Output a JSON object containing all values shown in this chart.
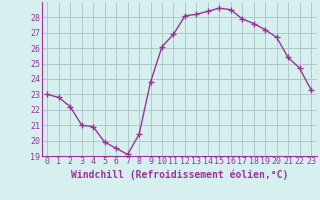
{
  "x": [
    0,
    1,
    2,
    3,
    4,
    5,
    6,
    7,
    8,
    9,
    10,
    11,
    12,
    13,
    14,
    15,
    16,
    17,
    18,
    19,
    20,
    21,
    22,
    23
  ],
  "y": [
    23.0,
    22.8,
    22.2,
    21.0,
    20.9,
    19.9,
    19.5,
    19.1,
    20.4,
    23.8,
    26.1,
    26.9,
    28.1,
    28.2,
    28.4,
    28.6,
    28.5,
    27.9,
    27.6,
    27.2,
    26.7,
    25.4,
    24.7,
    23.3
  ],
  "line_color": "#993399",
  "marker": "+",
  "marker_size": 4,
  "xlabel": "Windchill (Refroidissement éolien,°C)",
  "xlabel_fontsize": 7,
  "xlim": [
    -0.5,
    23.5
  ],
  "ylim": [
    19,
    29
  ],
  "yticks": [
    19,
    20,
    21,
    22,
    23,
    24,
    25,
    26,
    27,
    28
  ],
  "xticks": [
    0,
    1,
    2,
    3,
    4,
    5,
    6,
    7,
    8,
    9,
    10,
    11,
    12,
    13,
    14,
    15,
    16,
    17,
    18,
    19,
    20,
    21,
    22,
    23
  ],
  "bg_color": "#d6f0f0",
  "grid_color": "#b0c8c8",
  "tick_fontsize": 6,
  "line_width": 1.0
}
